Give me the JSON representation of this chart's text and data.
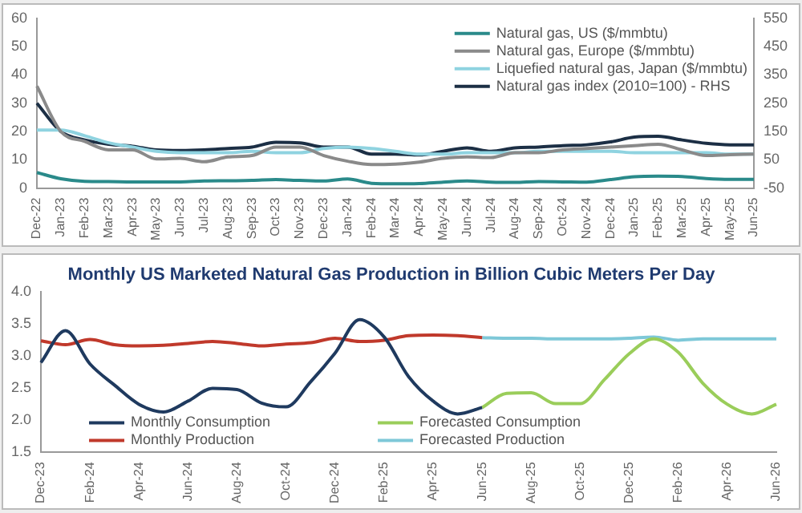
{
  "chart_data": [
    {
      "type": "line",
      "categories": [
        "Dec-22",
        "Jan-23",
        "Feb-23",
        "Mar-23",
        "Apr-23",
        "May-23",
        "Jun-23",
        "Jul-23",
        "Aug-23",
        "Sep-23",
        "Oct-23",
        "Nov-23",
        "Dec-23",
        "Jan-24",
        "Feb-24",
        "Mar-24",
        "Apr-24",
        "May-24",
        "Jun-24",
        "Jul-24",
        "Aug-24",
        "Sep-24",
        "Oct-24",
        "Nov-24",
        "Dec-24",
        "Jan-25",
        "Feb-25",
        "Mar-25",
        "Apr-25",
        "May-25",
        "Jun-25"
      ],
      "series": [
        {
          "name": "Natural gas, US ($/mmbtu)",
          "color": "#2a8a8a",
          "values": [
            5.5,
            3.3,
            2.4,
            2.3,
            2.2,
            2.2,
            2.2,
            2.5,
            2.6,
            2.7,
            3.0,
            2.7,
            2.5,
            3.2,
            1.7,
            1.5,
            1.6,
            2.1,
            2.5,
            2.1,
            2.0,
            2.3,
            2.2,
            2.1,
            3.0,
            4.0,
            4.2,
            4.1,
            3.4,
            3.1,
            3.1
          ]
        },
        {
          "name": "Natural gas, Europe ($/mmbtu)",
          "color": "#8a8a8a",
          "values": [
            36,
            20,
            16.5,
            13.5,
            13.5,
            10.3,
            10.5,
            9.3,
            11,
            11.5,
            14.5,
            14.5,
            11.5,
            9.5,
            8.3,
            8.5,
            9.2,
            10.5,
            11,
            10.8,
            12.5,
            12.5,
            13.5,
            14,
            14.5,
            15,
            15.5,
            13.5,
            11.5,
            11.8,
            12
          ]
        },
        {
          "name": "Liquefied natural gas, Japan ($/mmbtu)",
          "color": "#8fd3e0",
          "values": [
            20.5,
            20.5,
            18.5,
            16,
            14.5,
            13,
            12.5,
            12.5,
            12.5,
            13,
            12.5,
            12.5,
            14,
            14.5,
            14,
            13,
            12,
            12,
            12.5,
            12.5,
            12.5,
            13,
            13,
            13,
            13,
            12.5,
            12.5,
            12.5,
            12.5,
            12,
            12
          ]
        },
        {
          "name": "Natural gas index (2010=100) - RHS",
          "color": "#1c2f45",
          "axis": "y2",
          "values": [
            250,
            150,
            120,
            105,
            98,
            85,
            83,
            85,
            90,
            95,
            112,
            110,
            95,
            95,
            70,
            70,
            67,
            80,
            92,
            80,
            92,
            95,
            100,
            103,
            113,
            130,
            133,
            120,
            108,
            103,
            103
          ]
        }
      ],
      "ylim": [
        0,
        60
      ],
      "yticks": [
        0,
        10,
        20,
        30,
        40,
        50,
        60
      ],
      "y2lim": [
        -50,
        550
      ],
      "y2ticks": [
        -50,
        50,
        150,
        250,
        350,
        450,
        550
      ],
      "legend": "top right"
    },
    {
      "type": "line",
      "title": "Monthly US Marketed Natural Gas Production in Billion Cubic Meters Per Day",
      "categories": [
        "Dec-23",
        null,
        "Feb-24",
        null,
        "Apr-24",
        null,
        "Jun-24",
        null,
        "Aug-24",
        null,
        "Oct-24",
        null,
        "Dec-24",
        null,
        "Feb-25",
        null,
        "Apr-25",
        null,
        "Jun-25",
        null,
        "Aug-25",
        null,
        "Oct-25",
        null,
        "Dec-25",
        null,
        "Feb-26",
        null,
        "Apr-26",
        null,
        "Jun-26"
      ],
      "series": [
        {
          "name": "Monthly Consumption",
          "color": "#1f3a5f",
          "values": [
            2.9,
            3.4,
            2.88,
            2.55,
            2.25,
            2.13,
            2.3,
            2.5,
            2.48,
            2.27,
            2.21,
            2.6,
            3.05,
            3.57,
            3.3,
            2.68,
            2.3,
            2.1,
            2.2,
            null,
            null,
            null,
            null,
            null,
            null,
            null,
            null,
            null,
            null,
            null,
            null
          ]
        },
        {
          "name": "Monthly Production",
          "color": "#c0392b",
          "values": [
            3.24,
            3.18,
            3.26,
            3.18,
            3.16,
            3.17,
            3.2,
            3.23,
            3.2,
            3.16,
            3.19,
            3.21,
            3.28,
            3.23,
            3.25,
            3.32,
            3.33,
            3.32,
            3.29,
            null,
            null,
            null,
            null,
            null,
            null,
            null,
            null,
            null,
            null,
            null,
            null
          ]
        },
        {
          "name": "Forecasted Consumption",
          "color": "#9acd5a",
          "values": [
            null,
            null,
            null,
            null,
            null,
            null,
            null,
            null,
            null,
            null,
            null,
            null,
            null,
            null,
            null,
            null,
            null,
            null,
            2.2,
            2.42,
            2.43,
            2.26,
            2.26,
            2.64,
            3.04,
            3.27,
            3.06,
            2.58,
            2.25,
            2.1,
            2.25
          ]
        },
        {
          "name": "Forecasted Production",
          "color": "#7ec8d8",
          "values": [
            null,
            null,
            null,
            null,
            null,
            null,
            null,
            null,
            null,
            null,
            null,
            null,
            null,
            null,
            null,
            null,
            null,
            null,
            3.29,
            3.28,
            3.28,
            3.27,
            3.27,
            3.27,
            3.28,
            3.3,
            3.25,
            3.27,
            3.27,
            3.27,
            3.27
          ]
        }
      ],
      "ylim": [
        1.5,
        4.0
      ],
      "yticks": [
        {
          "value": 1.5,
          "label": "1.5"
        },
        {
          "value": 2.0,
          "label": "2.0"
        },
        {
          "value": 2.5,
          "label": "2.5"
        },
        {
          "value": 3.0,
          "label": "3.0"
        },
        {
          "value": 3.5,
          "label": "3.5"
        },
        {
          "value": 4.0,
          "label": "4.0"
        }
      ],
      "legend": "bottom left"
    }
  ]
}
